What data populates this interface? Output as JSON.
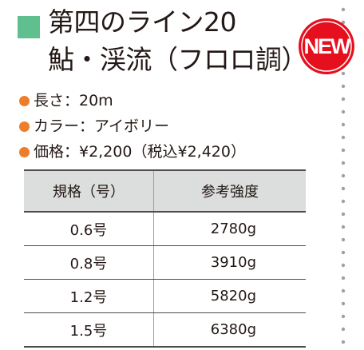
{
  "header": {
    "title_line1": "第四のライン20",
    "title_line2": "鮎・渓流（フロロ調）"
  },
  "badge": {
    "label": "NEW"
  },
  "specs": [
    "長さ：20m",
    "カラー：アイボリー",
    "価格：¥2,200（税込¥2,420）"
  ],
  "table": {
    "columns": [
      "規格（号）",
      "参考強度"
    ],
    "rows": [
      [
        "0.6号",
        "2780g"
      ],
      [
        "0.8号",
        "3910g"
      ],
      [
        "1.2号",
        "5820g"
      ],
      [
        "1.5号",
        "6380g"
      ]
    ]
  }
}
